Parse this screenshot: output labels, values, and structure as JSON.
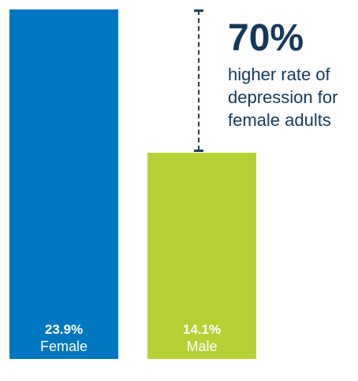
{
  "chart_data": {
    "type": "bar",
    "categories": [
      "Female",
      "Male"
    ],
    "values": [
      23.9,
      14.1
    ],
    "value_labels": [
      "23.9%",
      "14.1%"
    ],
    "colors": [
      "#0077c0",
      "#b5d134"
    ],
    "ylim": [
      0,
      23.9
    ],
    "grid": false,
    "legend": "none",
    "annotation": {
      "headline": "70%",
      "line1": "higher rate of",
      "line2": "depression for",
      "line3": "female adults",
      "color": "#13395b"
    }
  }
}
